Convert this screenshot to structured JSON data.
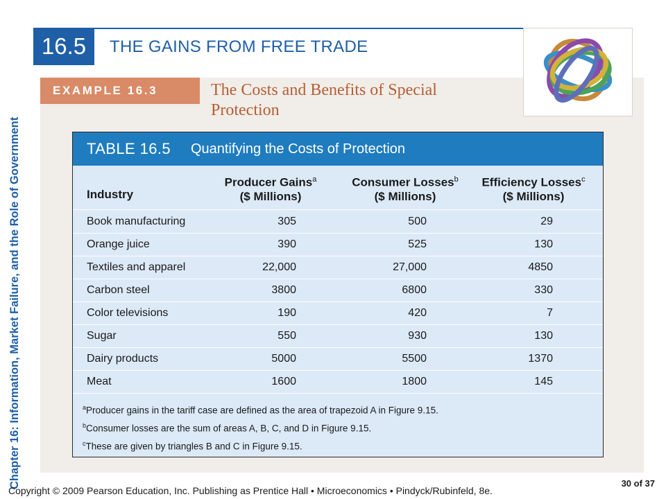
{
  "side_text": "Chapter 16:  Information, Market Failure, and the Role of Government",
  "section": {
    "number": "16.5",
    "title": "THE GAINS FROM FREE TRADE"
  },
  "example": {
    "label": "EXAMPLE 16.3",
    "title": "The Costs and Benefits of Special Protection"
  },
  "table": {
    "label": "TABLE 16.5",
    "caption": "Quantifying the Costs of Protection",
    "columns": {
      "industry": "Industry",
      "producer": {
        "line1": "Producer Gains",
        "sup": "a",
        "line2": "($ Millions)"
      },
      "consumer": {
        "line1": "Consumer Losses",
        "sup": "b",
        "line2": "($ Millions)"
      },
      "efficiency": {
        "line1": "Efficiency Losses",
        "sup": "c",
        "line2": "($ Millions)"
      }
    },
    "rows": [
      {
        "industry": "Book manufacturing",
        "producer": "305",
        "consumer": "500",
        "efficiency": "29"
      },
      {
        "industry": "Orange juice",
        "producer": "390",
        "consumer": "525",
        "efficiency": "130"
      },
      {
        "industry": "Textiles and apparel",
        "producer": "22,000",
        "consumer": "27,000",
        "efficiency": "4850"
      },
      {
        "industry": "Carbon steel",
        "producer": "3800",
        "consumer": "6800",
        "efficiency": "330"
      },
      {
        "industry": "Color televisions",
        "producer": "190",
        "consumer": "420",
        "efficiency": "7"
      },
      {
        "industry": "Sugar",
        "producer": "550",
        "consumer": "930",
        "efficiency": "130"
      },
      {
        "industry": "Dairy products",
        "producer": "5000",
        "consumer": "5500",
        "efficiency": "1370"
      },
      {
        "industry": "Meat",
        "producer": "1600",
        "consumer": "1800",
        "efficiency": "145"
      }
    ],
    "notes": [
      {
        "sup": "a",
        "text": "Producer gains in the tariff case are defined as the area of trapezoid A in Figure 9.15."
      },
      {
        "sup": "b",
        "text": "Consumer losses are the sum of areas A, B, C, and D in Figure 9.15."
      },
      {
        "sup": "c",
        "text": "These are given by triangles B and C in Figure 9.15."
      }
    ]
  },
  "footer": "Copyright © 2009 Pearson Education, Inc. Publishing as Prentice Hall  •  Microeconomics  •  Pindyck/Rubinfeld, 8e.",
  "page": "30 of 37",
  "colors": {
    "brand_blue": "#1e5fa8",
    "table_header": "#1f7cbf",
    "example_bar": "#d98a66",
    "example_title": "#b45f36",
    "table_bg": "#dce9f7"
  }
}
